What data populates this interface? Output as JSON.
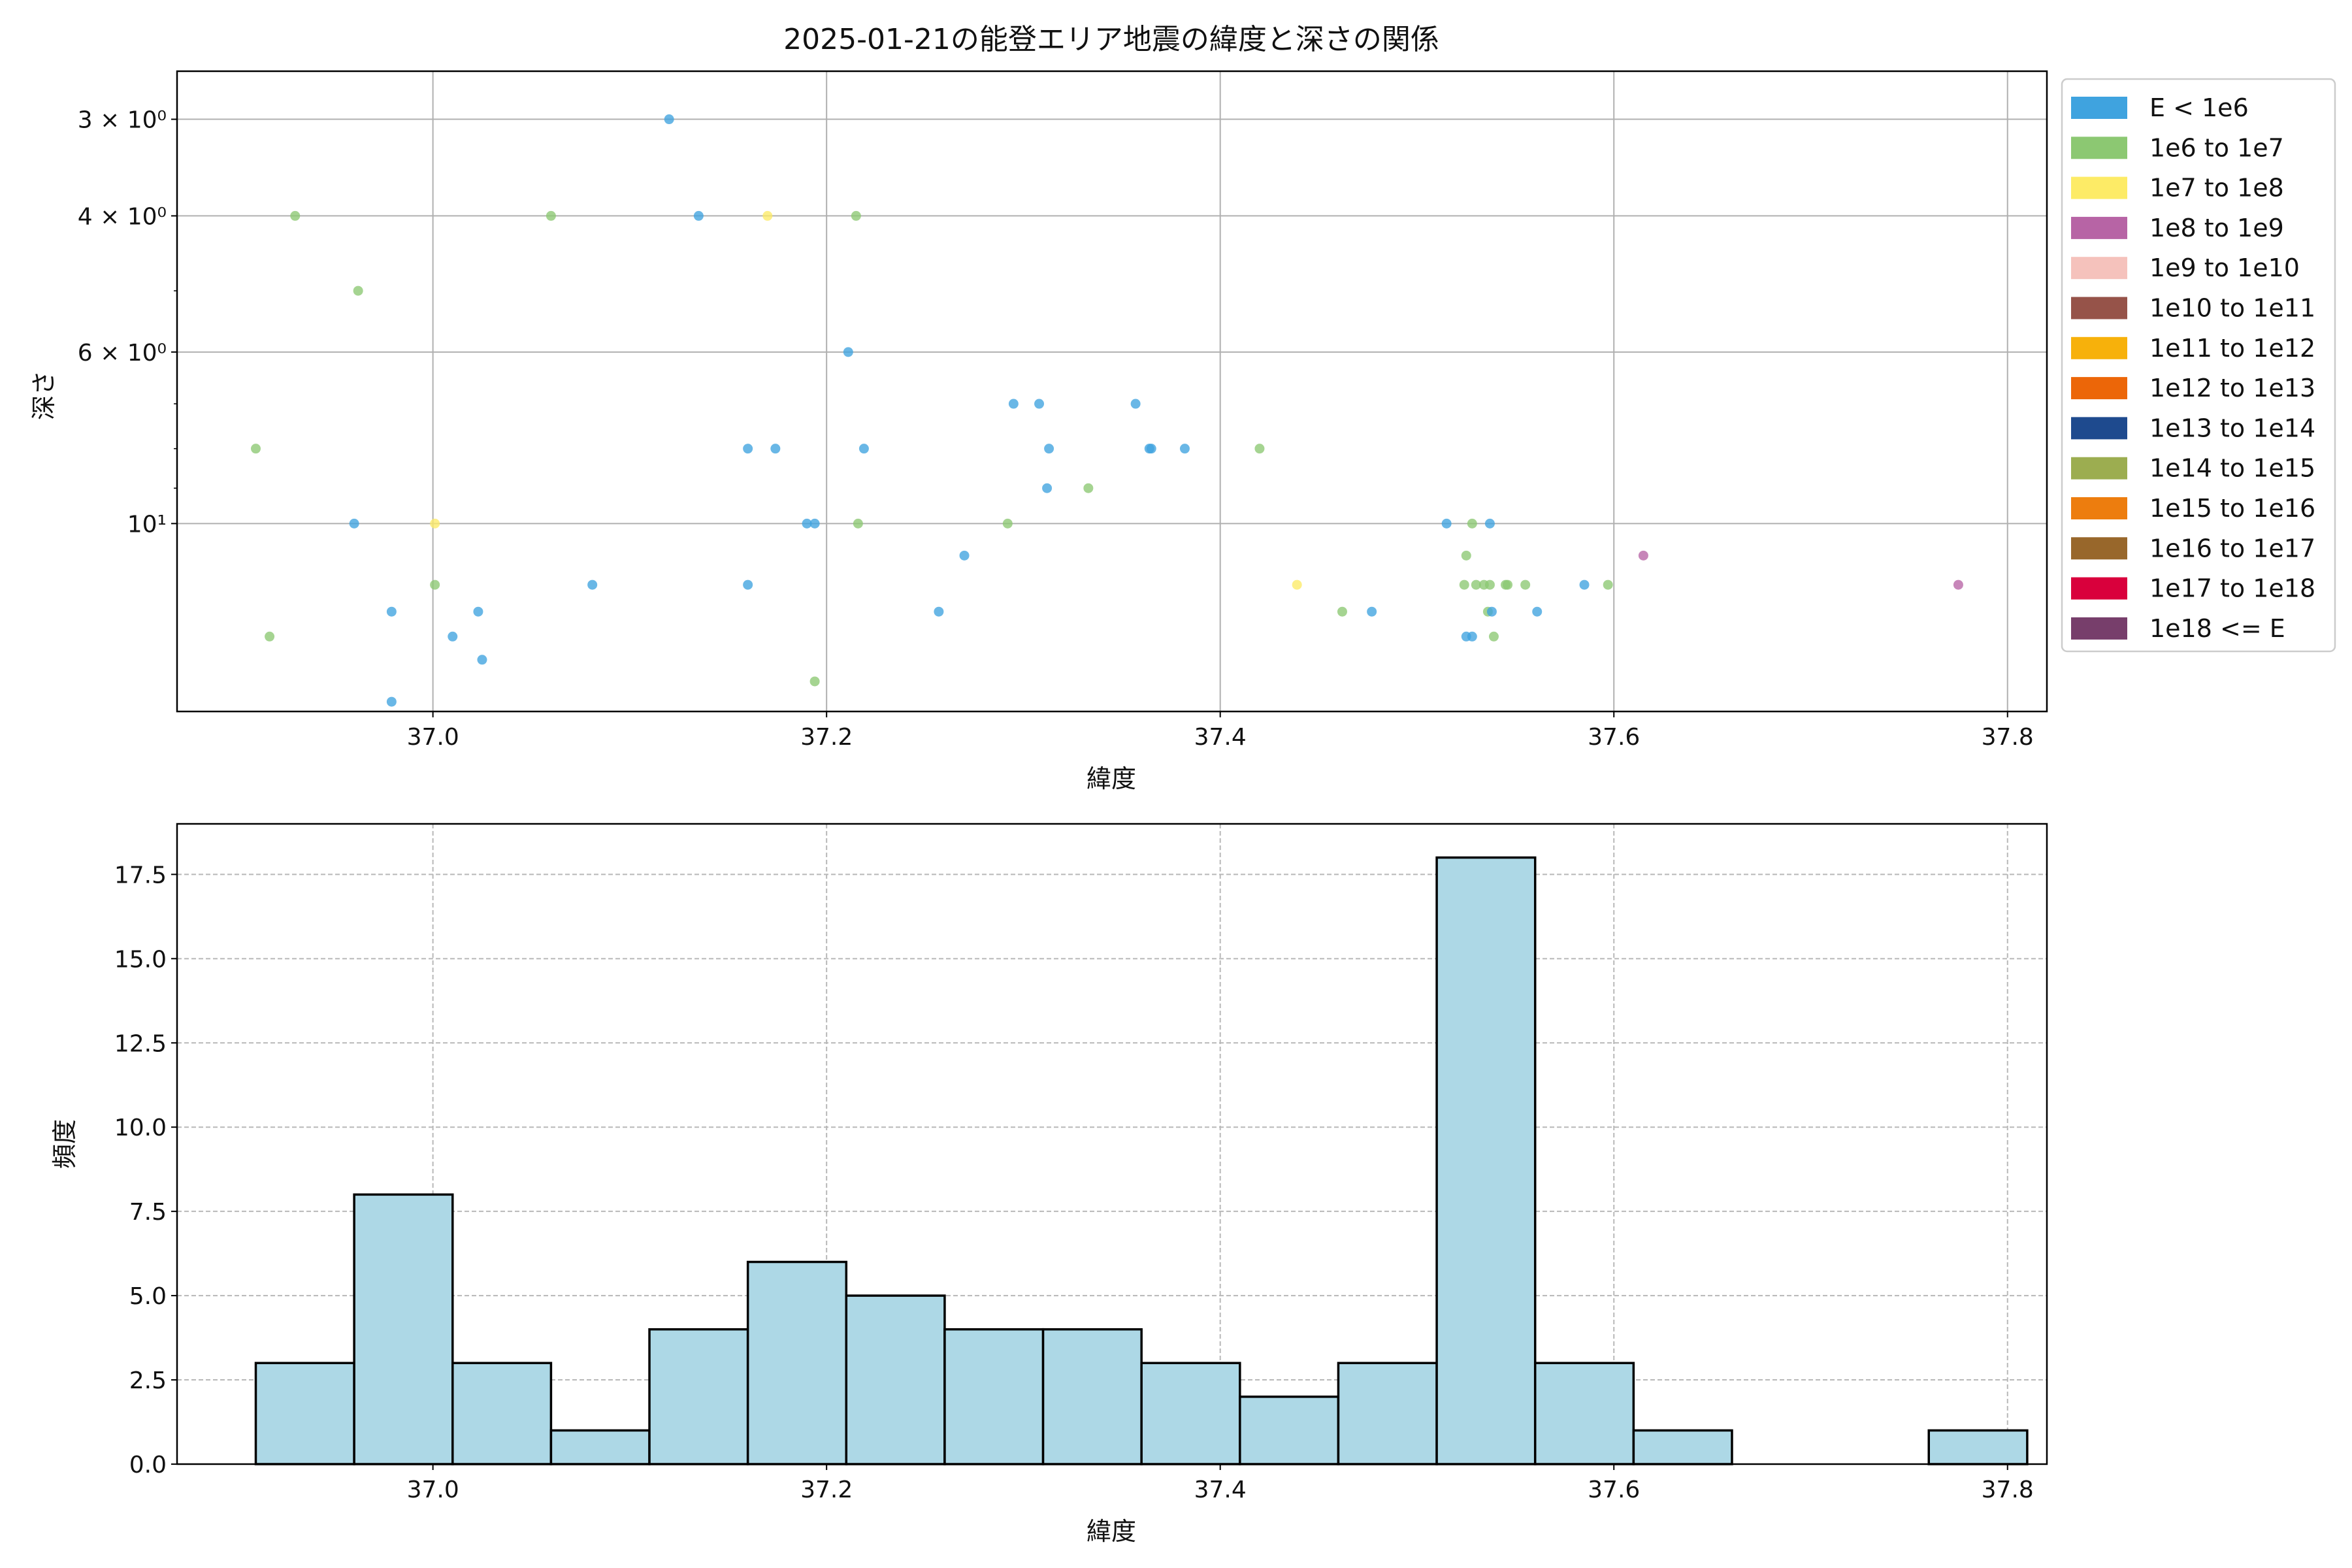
{
  "chart_data": [
    {
      "type": "scatter",
      "title": "2025-01-21の能登エリア地震の緯度と深さの関係",
      "xlabel": "緯度",
      "ylabel": "深さ",
      "yscale": "log",
      "y_inverted": true,
      "xlim": [
        36.87,
        37.82
      ],
      "ylim": [
        17.5,
        2.6
      ],
      "grid": true,
      "xticks": [
        37.0,
        37.2,
        37.4,
        37.6,
        37.8
      ],
      "xtick_labels": [
        "37.0",
        "37.2",
        "37.4",
        "37.6",
        "37.8"
      ],
      "yticks": [
        3,
        4,
        6,
        10
      ],
      "ytick_labels": [
        "3 × 10⁰",
        "4 × 10⁰",
        "6 × 10⁰",
        "10¹"
      ],
      "legend_position": "outside-right",
      "legend": [
        {
          "label": "E < 1e6",
          "color": "#3fa3df"
        },
        {
          "label": "1e6 to 1e7",
          "color": "#8cc872"
        },
        {
          "label": "1e7 to 1e8",
          "color": "#fdeb66"
        },
        {
          "label": "1e8 to 1e9",
          "color": "#b764a5"
        },
        {
          "label": "1e9 to 1e10",
          "color": "#f5c2bc"
        },
        {
          "label": "1e10 to 1e11",
          "color": "#965349"
        },
        {
          "label": "1e11 to 1e12",
          "color": "#f7b10b"
        },
        {
          "label": "1e12 to 1e13",
          "color": "#ec6608"
        },
        {
          "label": "1e13 to 1e14",
          "color": "#1e4a8e"
        },
        {
          "label": "1e14 to 1e15",
          "color": "#9cad50"
        },
        {
          "label": "1e15 to 1e16",
          "color": "#ed7d0e"
        },
        {
          "label": "1e16 to 1e17",
          "color": "#98672b"
        },
        {
          "label": "1e17 to 1e18",
          "color": "#d9003c"
        },
        {
          "label": "1e18 <= E",
          "color": "#773e6b"
        }
      ],
      "points": [
        {
          "x": 37.12,
          "y": 3,
          "c": 0
        },
        {
          "x": 37.135,
          "y": 4,
          "c": 0
        },
        {
          "x": 36.93,
          "y": 4,
          "c": 1
        },
        {
          "x": 37.06,
          "y": 4,
          "c": 1
        },
        {
          "x": 37.17,
          "y": 4,
          "c": 2
        },
        {
          "x": 37.215,
          "y": 4,
          "c": 1
        },
        {
          "x": 36.962,
          "y": 5,
          "c": 1
        },
        {
          "x": 37.211,
          "y": 6,
          "c": 0
        },
        {
          "x": 37.295,
          "y": 7,
          "c": 0
        },
        {
          "x": 37.308,
          "y": 7,
          "c": 0
        },
        {
          "x": 37.357,
          "y": 7,
          "c": 0
        },
        {
          "x": 36.91,
          "y": 8,
          "c": 1
        },
        {
          "x": 37.16,
          "y": 8,
          "c": 0
        },
        {
          "x": 37.174,
          "y": 8,
          "c": 0
        },
        {
          "x": 37.219,
          "y": 8,
          "c": 0
        },
        {
          "x": 37.313,
          "y": 8,
          "c": 0
        },
        {
          "x": 37.364,
          "y": 8,
          "c": 0
        },
        {
          "x": 37.365,
          "y": 8,
          "c": 0
        },
        {
          "x": 37.382,
          "y": 8,
          "c": 0
        },
        {
          "x": 37.42,
          "y": 8,
          "c": 1
        },
        {
          "x": 37.312,
          "y": 9,
          "c": 0
        },
        {
          "x": 37.333,
          "y": 9,
          "c": 1
        },
        {
          "x": 36.96,
          "y": 10,
          "c": 0
        },
        {
          "x": 37.001,
          "y": 10,
          "c": 2
        },
        {
          "x": 37.19,
          "y": 10,
          "c": 0
        },
        {
          "x": 37.194,
          "y": 10,
          "c": 0
        },
        {
          "x": 37.216,
          "y": 10,
          "c": 1
        },
        {
          "x": 37.292,
          "y": 10,
          "c": 1
        },
        {
          "x": 37.515,
          "y": 10,
          "c": 0
        },
        {
          "x": 37.528,
          "y": 10,
          "c": 1
        },
        {
          "x": 37.537,
          "y": 10,
          "c": 0
        },
        {
          "x": 37.27,
          "y": 11,
          "c": 0
        },
        {
          "x": 37.525,
          "y": 11,
          "c": 1
        },
        {
          "x": 37.615,
          "y": 11,
          "c": 3
        },
        {
          "x": 37.001,
          "y": 12,
          "c": 1
        },
        {
          "x": 37.081,
          "y": 12,
          "c": 0
        },
        {
          "x": 37.16,
          "y": 12,
          "c": 0
        },
        {
          "x": 37.439,
          "y": 12,
          "c": 2
        },
        {
          "x": 37.524,
          "y": 12,
          "c": 1
        },
        {
          "x": 37.53,
          "y": 12,
          "c": 1
        },
        {
          "x": 37.534,
          "y": 12,
          "c": 1
        },
        {
          "x": 37.537,
          "y": 12,
          "c": 1
        },
        {
          "x": 37.545,
          "y": 12,
          "c": 1
        },
        {
          "x": 37.546,
          "y": 12,
          "c": 1
        },
        {
          "x": 37.555,
          "y": 12,
          "c": 1
        },
        {
          "x": 37.585,
          "y": 12,
          "c": 0
        },
        {
          "x": 37.597,
          "y": 12,
          "c": 1
        },
        {
          "x": 37.775,
          "y": 12,
          "c": 3
        },
        {
          "x": 36.979,
          "y": 13,
          "c": 0
        },
        {
          "x": 37.023,
          "y": 13,
          "c": 0
        },
        {
          "x": 37.257,
          "y": 13,
          "c": 0
        },
        {
          "x": 37.462,
          "y": 13,
          "c": 1
        },
        {
          "x": 37.477,
          "y": 13,
          "c": 0
        },
        {
          "x": 37.536,
          "y": 13,
          "c": 1
        },
        {
          "x": 37.538,
          "y": 13,
          "c": 0
        },
        {
          "x": 37.561,
          "y": 13,
          "c": 0
        },
        {
          "x": 36.917,
          "y": 14,
          "c": 1
        },
        {
          "x": 37.01,
          "y": 14,
          "c": 0
        },
        {
          "x": 37.525,
          "y": 14,
          "c": 0
        },
        {
          "x": 37.528,
          "y": 14,
          "c": 0
        },
        {
          "x": 37.539,
          "y": 14,
          "c": 1
        },
        {
          "x": 37.025,
          "y": 15,
          "c": 0
        },
        {
          "x": 37.194,
          "y": 16,
          "c": 1
        },
        {
          "x": 36.979,
          "y": 17,
          "c": 0
        }
      ]
    },
    {
      "type": "bar",
      "subtype": "histogram",
      "xlabel": "緯度",
      "ylabel": "頻度",
      "xlim": [
        36.87,
        37.82
      ],
      "ylim": [
        0,
        19
      ],
      "grid": true,
      "bar_color": "#add8e6",
      "edge_color": "#000000",
      "xticks": [
        37.0,
        37.2,
        37.4,
        37.6,
        37.8
      ],
      "xtick_labels": [
        "37.0",
        "37.2",
        "37.4",
        "37.6",
        "37.8"
      ],
      "yticks": [
        0,
        2.5,
        5,
        7.5,
        10,
        12.5,
        15,
        17.5
      ],
      "ytick_labels": [
        "0.0",
        "2.5",
        "5.0",
        "7.5",
        "10.0",
        "12.5",
        "15.0",
        "17.5"
      ],
      "bin_start": 36.91,
      "bin_width": 0.05,
      "values": [
        3,
        8,
        3,
        1,
        4,
        6,
        5,
        4,
        4,
        3,
        2,
        3,
        18,
        3,
        1,
        0,
        0,
        1
      ]
    }
  ]
}
